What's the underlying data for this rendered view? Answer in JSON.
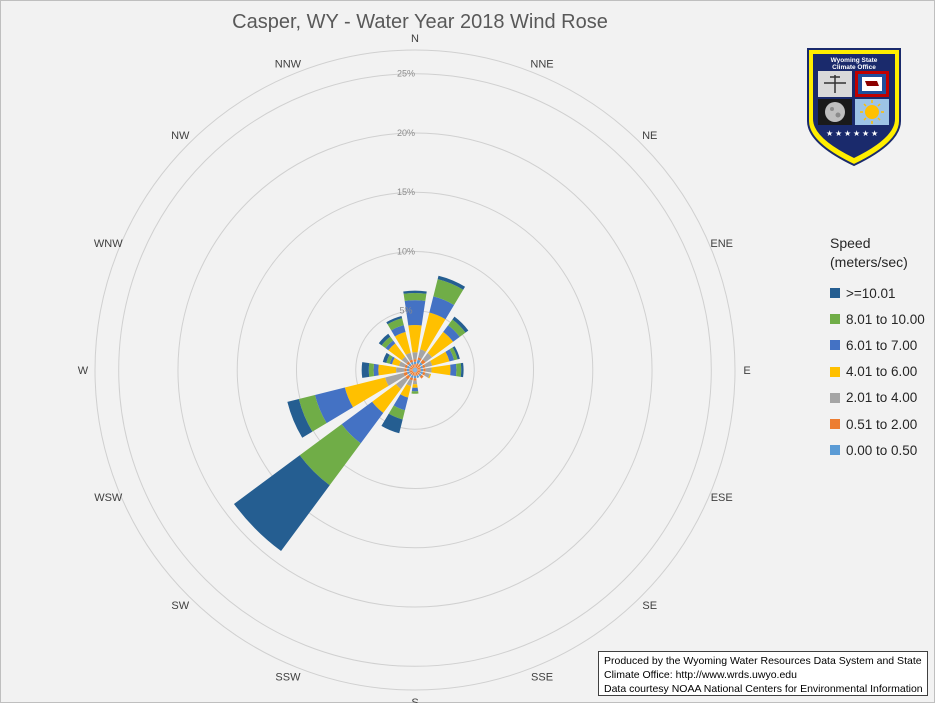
{
  "chart_data": {
    "type": "wind-rose",
    "title": "Casper, WY - Water Year 2018 Wind Rose",
    "directions": [
      "N",
      "NNE",
      "NE",
      "ENE",
      "E",
      "ESE",
      "SE",
      "SSE",
      "S",
      "SSW",
      "SW",
      "WSW",
      "W",
      "WNW",
      "NW",
      "NNW"
    ],
    "radial_ticks": [
      "5%",
      "10%",
      "15%",
      "20%",
      "25%"
    ],
    "radial_max": 27,
    "legend_title_line1": "Speed",
    "legend_title_line2": "(meters/sec)",
    "bins": [
      {
        "name": ">=10.01",
        "color": "#255e91"
      },
      {
        "name": "8.01 to 10.00",
        "color": "#70ad47"
      },
      {
        "name": "6.01 to 7.00",
        "color": "#4472c4"
      },
      {
        "name": "4.01 to 6.00",
        "color": "#ffc000"
      },
      {
        "name": "2.01 to 4.00",
        "color": "#a5a5a5"
      },
      {
        "name": "0.51 to 2.00",
        "color": "#ed7d31"
      },
      {
        "name": "0.00 to 0.50",
        "color": "#5b9bd5"
      }
    ],
    "values": {
      "N": [
        0.0,
        0.2,
        0.3,
        0.2,
        0.2,
        0.6,
        2.3,
        2.1,
        0.6,
        0.2
      ],
      "NNE": [
        0.0,
        0.2,
        0.4,
        0.3,
        0.2,
        0.7,
        3.2,
        1.4,
        1.5,
        0.3
      ],
      "NE": [
        0.0,
        0.2,
        0.4,
        0.2,
        0.3,
        0.7,
        2.2,
        0.7,
        0.6,
        0.3
      ],
      "ENE": [
        0.0,
        0.2,
        0.3,
        0.2,
        0.2,
        0.6,
        1.5,
        0.4,
        0.3,
        0.2
      ],
      "E": [
        0.0,
        0.2,
        0.3,
        0.2,
        0.2,
        0.5,
        1.6,
        0.5,
        0.4,
        0.2
      ],
      "ESE": [
        0.0,
        0.2,
        0.3,
        0.2,
        0.2,
        0.4,
        0.1,
        0.0,
        0.0,
        0.0
      ],
      "SE": [
        0.0,
        0.2,
        0.3,
        0.2,
        0.2,
        0.0,
        0.0,
        0.0,
        0.0,
        0.0
      ],
      "SSE": [
        0.0,
        0.2,
        0.3,
        0.2,
        0.0,
        0.0,
        0.0,
        0.0,
        0.0,
        0.0
      ],
      "S": [
        0.0,
        0.2,
        0.3,
        0.2,
        0.2,
        0.3,
        0.3,
        0.3,
        0.2,
        0.0
      ],
      "SSW": [
        0.0,
        0.2,
        0.3,
        0.2,
        0.2,
        0.5,
        1.0,
        1.1,
        0.8,
        1.2
      ],
      "SW": [
        0.0,
        0.2,
        0.3,
        0.2,
        0.3,
        1.0,
        2.5,
        3.2,
        4.4,
        6.9
      ],
      "WSW": [
        0.0,
        0.2,
        0.3,
        0.2,
        0.3,
        1.6,
        3.5,
        2.6,
        1.4,
        1.0
      ],
      "W": [
        0.0,
        0.2,
        0.3,
        0.2,
        0.2,
        0.7,
        1.5,
        0.4,
        0.4,
        0.6
      ],
      "WNW": [
        0.0,
        0.2,
        0.3,
        0.2,
        0.2,
        0.5,
        0.6,
        0.2,
        0.3,
        0.3
      ],
      "NW": [
        0.0,
        0.2,
        0.3,
        0.2,
        0.2,
        0.5,
        1.4,
        0.3,
        0.4,
        0.3
      ],
      "NNW": [
        0.0,
        0.2,
        0.3,
        0.2,
        0.2,
        0.6,
        1.8,
        0.6,
        0.6,
        0.2
      ]
    },
    "segment_color_order": [
      "#ed7d31",
      "#5b9bd5",
      "#ed7d31",
      "#5b9bd5",
      "#ed7d31",
      "#a5a5a5",
      "#ffc000",
      "#4472c4",
      "#70ad47",
      "#255e91"
    ]
  },
  "credits": {
    "line1": "Produced by the Wyoming Water Resources Data System and State",
    "line2": "Climate Office: http://www.wrds.uwyo.edu",
    "line3": "Data courtesy NOAA National Centers for Environmental Information"
  },
  "logo": {
    "line1": "Wyoming State",
    "line2": "Climate Office",
    "border_color": "#ffee00",
    "shield_color": "#1a2a6c"
  }
}
